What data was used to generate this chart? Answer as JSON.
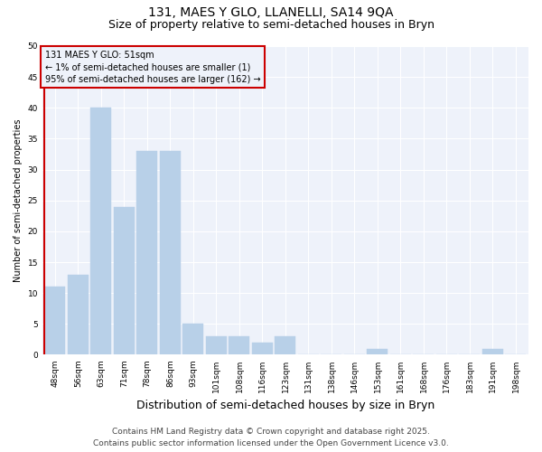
{
  "title": "131, MAES Y GLO, LLANELLI, SA14 9QA",
  "subtitle": "Size of property relative to semi-detached houses in Bryn",
  "xlabel": "Distribution of semi-detached houses by size in Bryn",
  "ylabel": "Number of semi-detached properties",
  "categories": [
    "48sqm",
    "56sqm",
    "63sqm",
    "71sqm",
    "78sqm",
    "86sqm",
    "93sqm",
    "101sqm",
    "108sqm",
    "116sqm",
    "123sqm",
    "131sqm",
    "138sqm",
    "146sqm",
    "153sqm",
    "161sqm",
    "168sqm",
    "176sqm",
    "183sqm",
    "191sqm",
    "198sqm"
  ],
  "values": [
    11,
    13,
    40,
    24,
    33,
    33,
    5,
    3,
    3,
    2,
    3,
    0,
    0,
    0,
    1,
    0,
    0,
    0,
    0,
    1,
    0
  ],
  "bar_color": "#b8d0e8",
  "bar_edge_color": "#b8d0e8",
  "annotation_box_text": "131 MAES Y GLO: 51sqm\n← 1% of semi-detached houses are smaller (1)\n95% of semi-detached houses are larger (162) →",
  "annotation_box_edgecolor": "#cc0000",
  "redline_color": "#cc0000",
  "ylim": [
    0,
    50
  ],
  "yticks": [
    0,
    5,
    10,
    15,
    20,
    25,
    30,
    35,
    40,
    45,
    50
  ],
  "bg_color": "#eef2fa",
  "plot_bg_color": "#eef2fa",
  "grid_color": "#ffffff",
  "fig_bg_color": "#ffffff",
  "footer1": "Contains HM Land Registry data © Crown copyright and database right 2025.",
  "footer2": "Contains public sector information licensed under the Open Government Licence v3.0.",
  "title_fontsize": 10,
  "subtitle_fontsize": 9,
  "xlabel_fontsize": 9,
  "ylabel_fontsize": 7,
  "tick_fontsize": 6.5,
  "annotation_fontsize": 7,
  "footer_fontsize": 6.5
}
